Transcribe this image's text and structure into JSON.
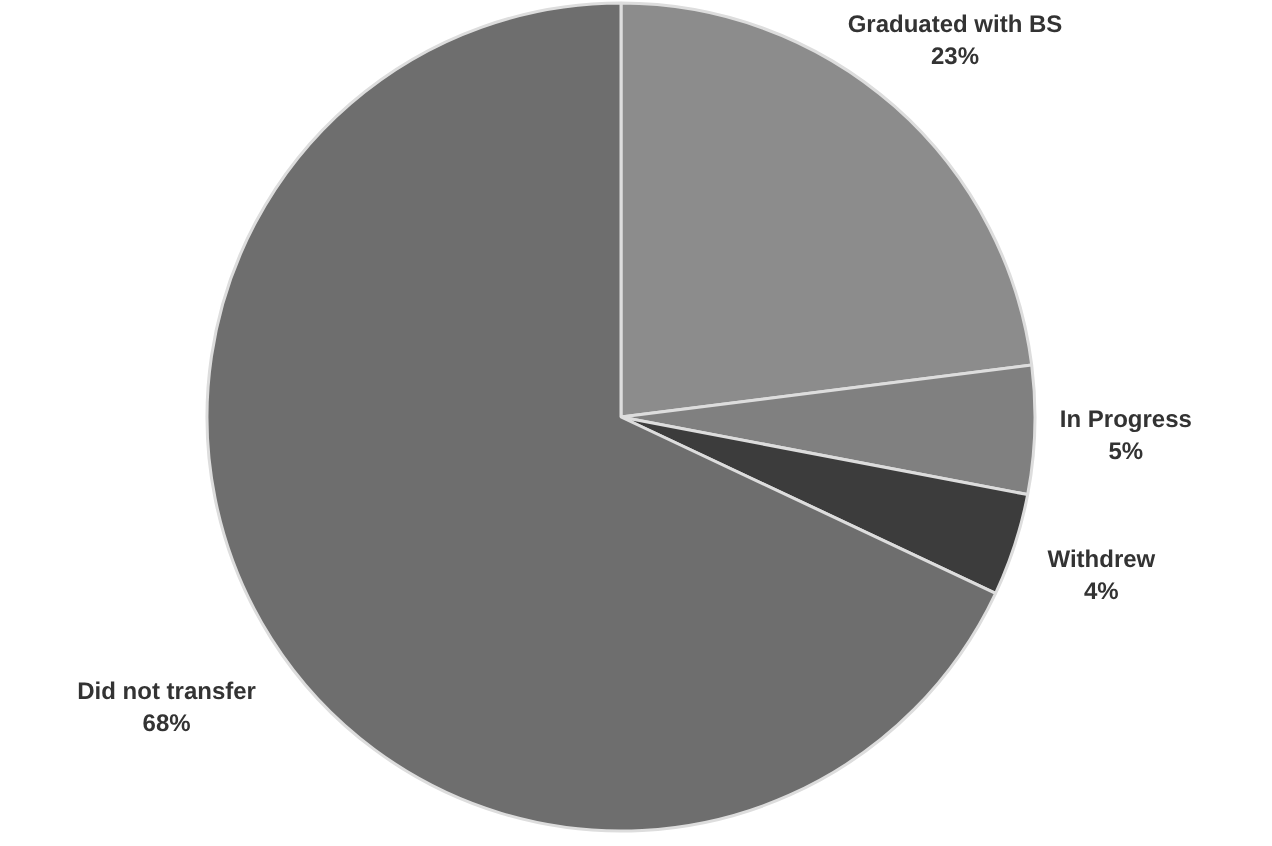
{
  "chart_data": {
    "type": "pie",
    "categories": [
      "Graduated with BS",
      "In Progress",
      "Withdrew",
      "Did not transfer"
    ],
    "values": [
      23,
      5,
      4,
      68
    ],
    "value_labels": [
      "23%",
      "5%",
      "4%",
      "68%"
    ],
    "colors": [
      "#8c8c8c",
      "#808080",
      "#3c3c3c",
      "#6e6e6e"
    ],
    "legend": false
  }
}
